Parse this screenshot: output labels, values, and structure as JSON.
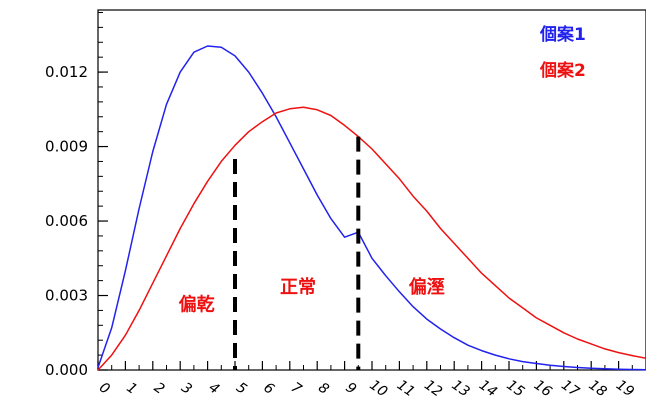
{
  "chart_data": {
    "type": "line",
    "title": "",
    "xlabel": "",
    "ylabel": "",
    "xlim": [
      0,
      20
    ],
    "ylim": [
      0,
      0.0145
    ],
    "x_ticks": [
      "0",
      "1",
      "2",
      "3",
      "4",
      "5",
      "6",
      "7",
      "8",
      "9",
      "10",
      "11",
      "12",
      "13",
      "14",
      "15",
      "16",
      "17",
      "18",
      "19"
    ],
    "y_ticks": [
      {
        "value": 0.0,
        "label": "0.000"
      },
      {
        "value": 0.003,
        "label": "0.003"
      },
      {
        "value": 0.006,
        "label": "0.006"
      },
      {
        "value": 0.009,
        "label": "0.009"
      },
      {
        "value": 0.012,
        "label": "0.012"
      }
    ],
    "legend": {
      "placement": "top-right"
    },
    "series": [
      {
        "name": "個案1",
        "color": "#2222ee",
        "x": [
          0,
          0.5,
          1,
          1.5,
          2,
          2.5,
          3,
          3.5,
          4,
          4.5,
          5,
          5.5,
          6,
          6.5,
          7,
          7.5,
          8,
          8.5,
          9,
          9.5,
          10,
          10.5,
          11,
          11.5,
          12,
          12.5,
          13,
          13.5,
          14,
          14.5,
          15,
          15.5,
          16,
          16.5,
          17,
          17.5,
          18,
          18.5,
          19,
          19.5,
          20
        ],
        "values": [
          0.0001,
          0.0017,
          0.004,
          0.0065,
          0.0088,
          0.0107,
          0.012,
          0.0128,
          0.01305,
          0.013,
          0.01265,
          0.012,
          0.01115,
          0.0102,
          0.00915,
          0.0081,
          0.00705,
          0.0061,
          0.00535,
          0.00555,
          0.0045,
          0.0038,
          0.00315,
          0.00255,
          0.00205,
          0.00165,
          0.0013,
          0.001,
          0.00078,
          0.0006,
          0.00045,
          0.00034,
          0.00026,
          0.00019,
          0.00014,
          0.0001,
          7e-05,
          5e-05,
          3e-05,
          2e-05,
          1e-05
        ]
      },
      {
        "name": "個案2",
        "color": "#ee1111",
        "x": [
          0,
          0.5,
          1,
          1.5,
          2,
          2.5,
          3,
          3.5,
          4,
          4.5,
          5,
          5.5,
          6,
          6.5,
          7,
          7.5,
          8,
          8.5,
          9,
          9.5,
          10,
          10.5,
          11,
          11.5,
          12,
          12.5,
          13,
          13.5,
          14,
          14.5,
          15,
          15.5,
          16,
          16.5,
          17,
          17.5,
          18,
          18.5,
          19,
          19.5,
          20
        ],
        "values": [
          0.0,
          0.0006,
          0.0014,
          0.0024,
          0.0035,
          0.0046,
          0.0057,
          0.0067,
          0.0076,
          0.0084,
          0.00905,
          0.0096,
          0.01,
          0.01035,
          0.01052,
          0.01058,
          0.01048,
          0.01025,
          0.00985,
          0.0094,
          0.0089,
          0.0083,
          0.0077,
          0.007,
          0.0064,
          0.0057,
          0.0051,
          0.0045,
          0.0039,
          0.0034,
          0.0029,
          0.0025,
          0.0021,
          0.0018,
          0.0015,
          0.00125,
          0.00105,
          0.00085,
          0.0007,
          0.00058,
          0.00047
        ]
      }
    ],
    "cutoffs": [
      {
        "x": 5,
        "y_top": 0.0085
      },
      {
        "x": 9.5,
        "y_top": 0.0094
      }
    ],
    "annotations": [
      {
        "text": "偏乾",
        "x": 3.6,
        "y": 0.0024,
        "color": "#ee1111"
      },
      {
        "text": "正常",
        "x": 7.3,
        "y": 0.0031,
        "color": "#ee1111"
      },
      {
        "text": "偏溼",
        "x": 12.0,
        "y": 0.0031,
        "color": "#ee1111"
      }
    ]
  }
}
